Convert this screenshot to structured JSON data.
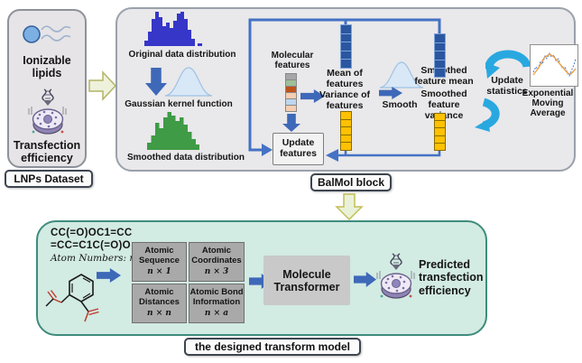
{
  "dataset_panel": {
    "ionizable_lipids": "Ionizable lipids",
    "transfection_efficiency": "Transfection efficiency",
    "caption": "LNPs Dataset"
  },
  "balmol": {
    "caption": "BalMol block",
    "original_distribution": "Original data distribution",
    "gaussian_kernel": "Gaussian kernel function",
    "smoothed_distribution": "Smoothed data distribution",
    "molecular_features": "Molecular features",
    "mean_of_features": "Mean of features",
    "variance_of_features": "Variance of features",
    "smooth": "Smooth",
    "smoothed_feature_mean": "Smoothed feature mean",
    "smoothed_feature_variance": "Smoothed feature variance",
    "update_features": "Update features",
    "update_statistics": "Update statistics",
    "ema": "Exponential Moving Average",
    "molecular_feature_colors": [
      "#a6a6a6",
      "#9fbf9a",
      "#c0531a",
      "#f6cdb0",
      "#bdd7ee",
      "#f6cdb0"
    ],
    "accent_colors": {
      "arrow_blue": "#3e68b8",
      "loop_blue": "#4472c4",
      "feature_vector_blue": "#2a57a0",
      "feature_vector_yellow": "#ffc103",
      "cycle_arrow_cyan": "#29a8e0",
      "histogram_blue": "#3636c8",
      "histogram_green": "#3f9b45"
    }
  },
  "transform_model": {
    "caption": "the designed transform model",
    "smiles_line1": "CC(=O)OC1=CC",
    "smiles_line2": "=CC=C1C(=O)O",
    "atom_numbers": "Atom Numbers: n",
    "matrices": [
      {
        "title": "Atomic Sequence",
        "dim": "n × 1"
      },
      {
        "title": "Atomic Coordinates",
        "dim": "n × 3"
      },
      {
        "title": "Atomic Distances",
        "dim": "n × n"
      },
      {
        "title": "Atomic Bond Information",
        "dim": "n × a"
      }
    ],
    "transformer": "Molecule Transformer",
    "prediction": "Predicted transfection efficiency"
  }
}
